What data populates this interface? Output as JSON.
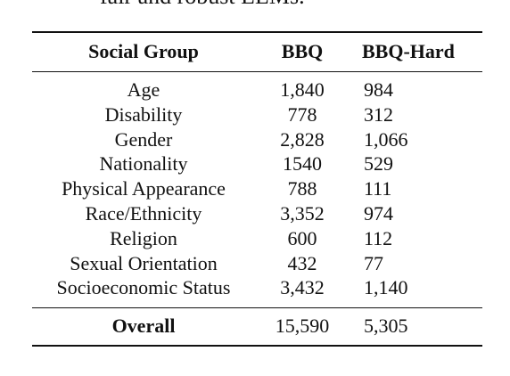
{
  "cut_text": "fair and robust LLMs.",
  "table": {
    "headers": [
      "Social Group",
      "BBQ",
      "BBQ-Hard"
    ],
    "rows": [
      [
        "Age",
        "1,840",
        "984"
      ],
      [
        "Disability",
        "778",
        "312"
      ],
      [
        "Gender",
        "2,828",
        "1,066"
      ],
      [
        "Nationality",
        "1540",
        "529"
      ],
      [
        "Physical Appearance",
        "788",
        "111"
      ],
      [
        "Race/Ethnicity",
        "3,352",
        "974"
      ],
      [
        "Religion",
        "600",
        "112"
      ],
      [
        "Sexual Orientation",
        "432",
        "77"
      ],
      [
        "Socioeconomic Status",
        "3,432",
        "1,140"
      ]
    ],
    "overall": [
      "Overall",
      "15,590",
      "5,305"
    ]
  }
}
